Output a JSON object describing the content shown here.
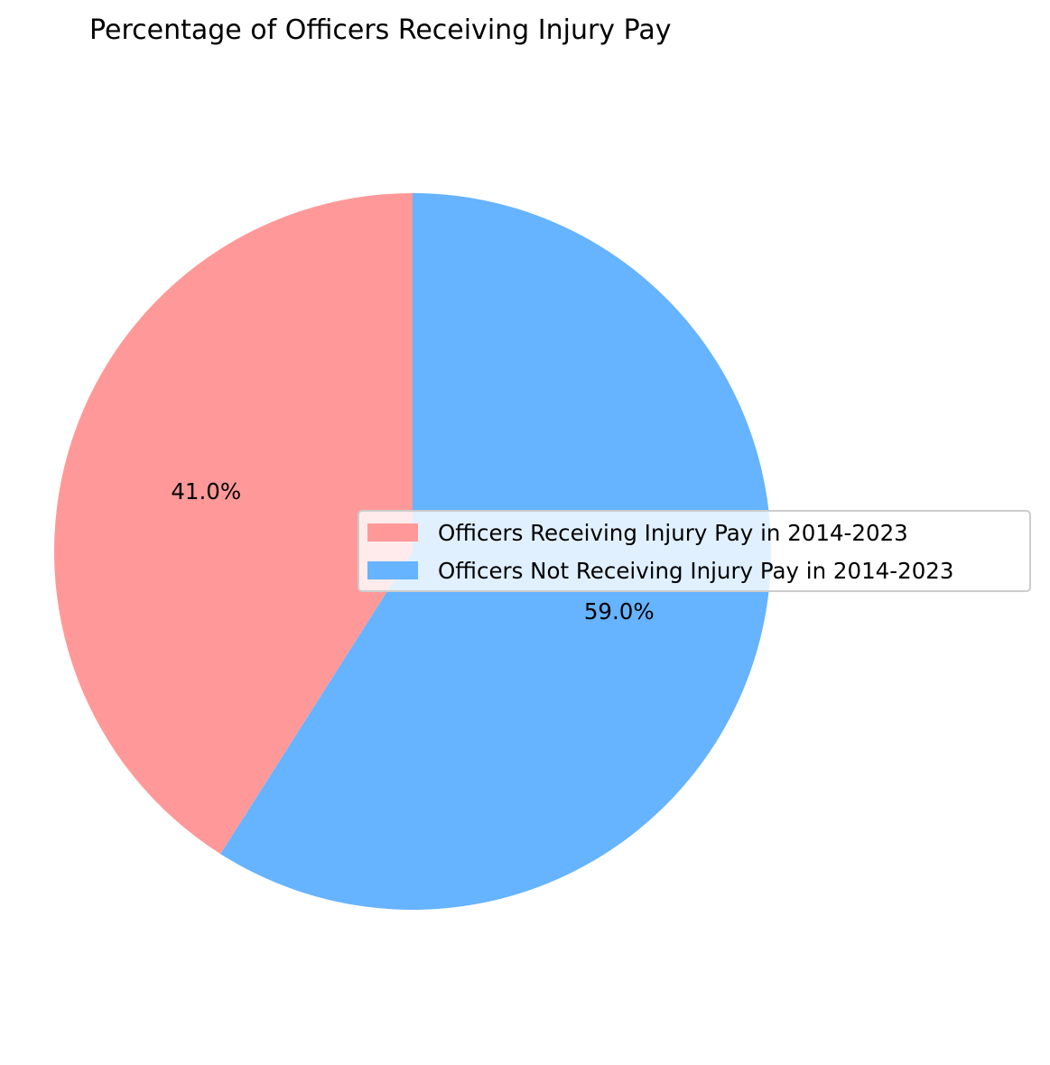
{
  "chart_data": {
    "type": "pie",
    "title": "Percentage of Officers Receiving Injury Pay",
    "labels": [
      "Officers Receiving Injury Pay in 2014-2023",
      "Officers Not Receiving Injury Pay in 2014-2023"
    ],
    "values": [
      41.0,
      59.0
    ],
    "value_labels": [
      "41.0%",
      "59.0%"
    ],
    "colors": [
      "#ff9999",
      "#66b3ff"
    ],
    "start_angle_deg": 90,
    "direction": "counterclockwise",
    "legend_position": "right"
  }
}
